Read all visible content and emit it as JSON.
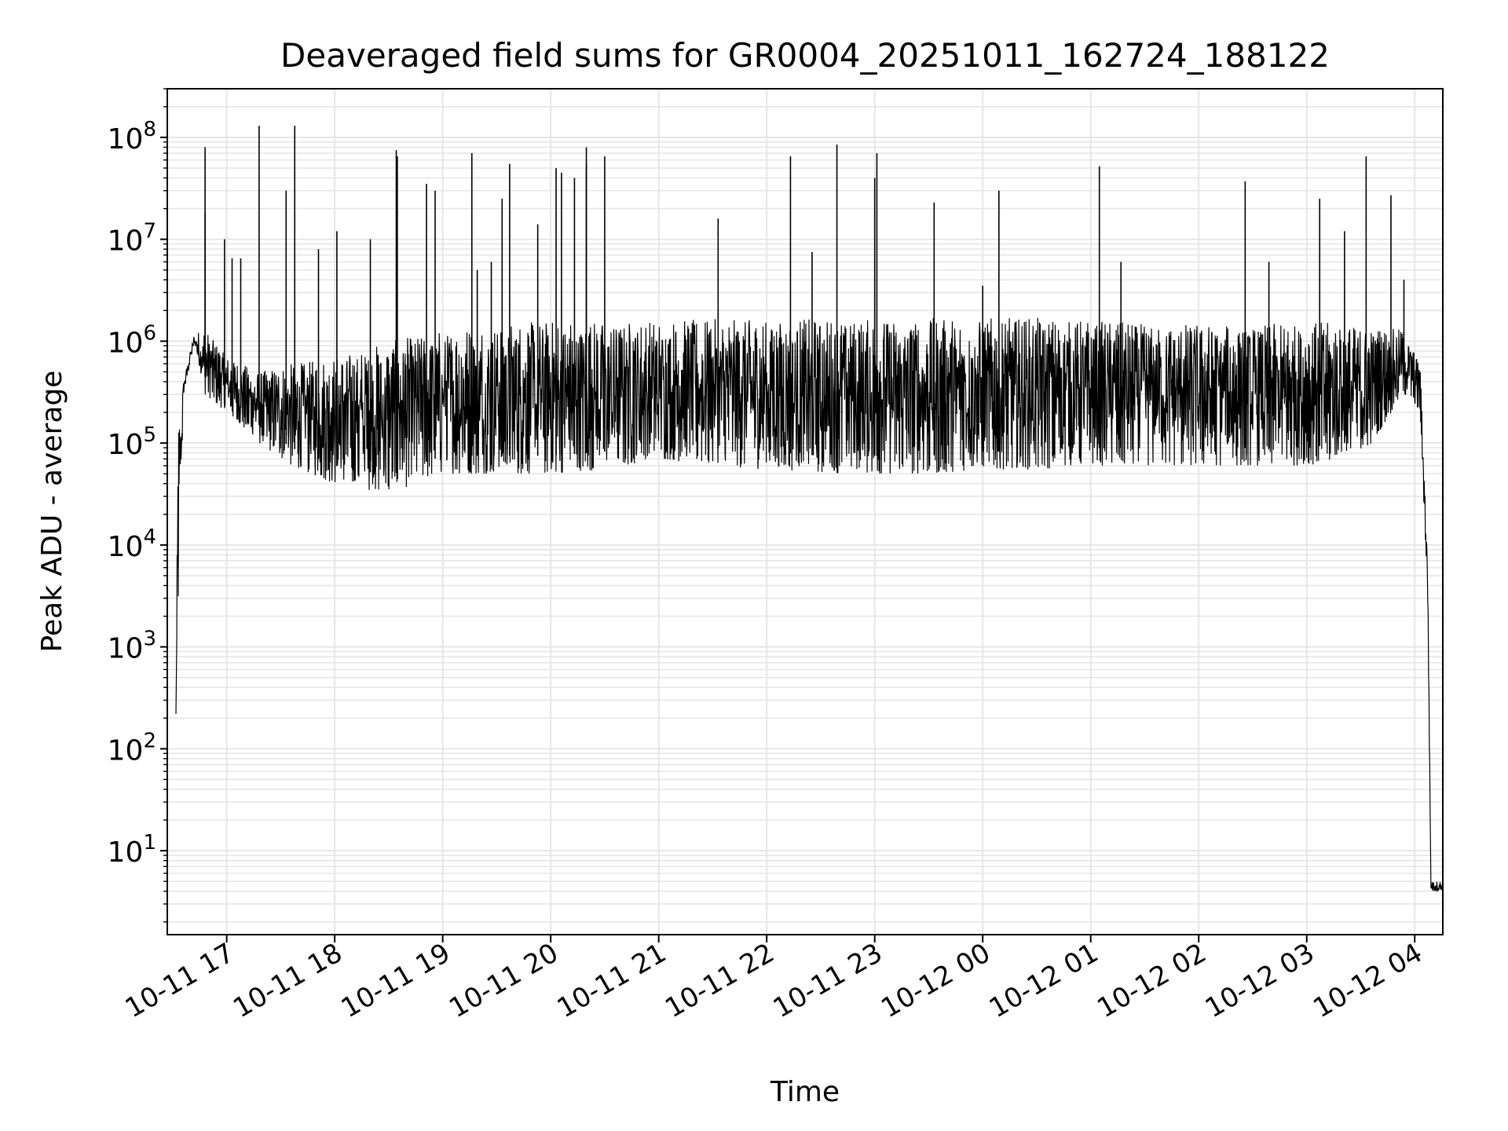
{
  "chart_data": {
    "type": "line",
    "title": "Deaveraged field sums for GR0004_20251011_162724_188122",
    "xlabel": "Time",
    "ylabel": "Peak ADU - average",
    "yscale": "log",
    "ylim": [
      1.5,
      300000000
    ],
    "xlim_hours": [
      16.45,
      28.26
    ],
    "x_tick_labels": [
      "10-11 17",
      "10-11 18",
      "10-11 19",
      "10-11 20",
      "10-11 21",
      "10-11 22",
      "10-11 23",
      "10-12 00",
      "10-12 01",
      "10-12 02",
      "10-12 03",
      "10-12 04"
    ],
    "x_tick_hours": [
      17,
      18,
      19,
      20,
      21,
      22,
      23,
      24,
      25,
      26,
      27,
      28
    ],
    "y_tick_exponents": [
      1,
      2,
      3,
      4,
      5,
      6,
      7,
      8
    ],
    "grid": true,
    "line_color": "#000000",
    "grid_color": "#e6e6e6",
    "series": [
      {
        "name": "Peak ADU - average",
        "envelope": [
          {
            "t": 16.53,
            "low": 220,
            "high": 220
          },
          {
            "t": 16.55,
            "low": 2000,
            "high": 150000
          },
          {
            "t": 16.6,
            "low": 300000,
            "high": 400000
          },
          {
            "t": 16.7,
            "low": 900000,
            "high": 1200000
          },
          {
            "t": 16.8,
            "low": 300000,
            "high": 1300000
          },
          {
            "t": 17.0,
            "low": 200000,
            "high": 700000
          },
          {
            "t": 17.3,
            "low": 100000,
            "high": 500000
          },
          {
            "t": 17.6,
            "low": 60000,
            "high": 600000
          },
          {
            "t": 18.0,
            "low": 40000,
            "high": 700000
          },
          {
            "t": 18.5,
            "low": 32000,
            "high": 1000000
          },
          {
            "t": 19.0,
            "low": 50000,
            "high": 1300000
          },
          {
            "t": 19.5,
            "low": 50000,
            "high": 1500000
          },
          {
            "t": 20.0,
            "low": 50000,
            "high": 1600000
          },
          {
            "t": 20.5,
            "low": 55000,
            "high": 1600000
          },
          {
            "t": 21.0,
            "low": 70000,
            "high": 1600000
          },
          {
            "t": 21.5,
            "low": 60000,
            "high": 1650000
          },
          {
            "t": 22.0,
            "low": 55000,
            "high": 1650000
          },
          {
            "t": 22.5,
            "low": 50000,
            "high": 1650000
          },
          {
            "t": 23.0,
            "low": 50000,
            "high": 1650000
          },
          {
            "t": 23.5,
            "low": 50000,
            "high": 1700000
          },
          {
            "t": 24.0,
            "low": 55000,
            "high": 1700000
          },
          {
            "t": 24.5,
            "low": 55000,
            "high": 1700000
          },
          {
            "t": 25.0,
            "low": 60000,
            "high": 1600000
          },
          {
            "t": 25.5,
            "low": 60000,
            "high": 1500000
          },
          {
            "t": 26.0,
            "low": 60000,
            "high": 1500000
          },
          {
            "t": 26.5,
            "low": 60000,
            "high": 1400000
          },
          {
            "t": 27.0,
            "low": 60000,
            "high": 1600000
          },
          {
            "t": 27.5,
            "low": 70000,
            "high": 1400000
          },
          {
            "t": 27.9,
            "low": 300000,
            "high": 1300000
          },
          {
            "t": 28.05,
            "low": 200000,
            "high": 600000
          },
          {
            "t": 28.12,
            "low": 3000,
            "high": 7000
          },
          {
            "t": 28.15,
            "low": 4,
            "high": 5
          },
          {
            "t": 28.26,
            "low": 4,
            "high": 5
          }
        ],
        "spikes": [
          {
            "t": 16.8,
            "v": 80000000
          },
          {
            "t": 16.8,
            "v": 18000000
          },
          {
            "t": 16.98,
            "v": 10000000
          },
          {
            "t": 17.05,
            "v": 6500000
          },
          {
            "t": 17.13,
            "v": 6500000
          },
          {
            "t": 17.3,
            "v": 130000000
          },
          {
            "t": 17.55,
            "v": 30000000
          },
          {
            "t": 17.63,
            "v": 130000000
          },
          {
            "t": 17.85,
            "v": 8000000
          },
          {
            "t": 18.02,
            "v": 12000000
          },
          {
            "t": 18.33,
            "v": 10000000
          },
          {
            "t": 18.57,
            "v": 75000000
          },
          {
            "t": 18.58,
            "v": 65000000
          },
          {
            "t": 18.85,
            "v": 35000000
          },
          {
            "t": 18.93,
            "v": 30000000
          },
          {
            "t": 19.27,
            "v": 70000000
          },
          {
            "t": 19.32,
            "v": 5000000
          },
          {
            "t": 19.45,
            "v": 6000000
          },
          {
            "t": 19.55,
            "v": 25000000
          },
          {
            "t": 19.62,
            "v": 55000000
          },
          {
            "t": 19.88,
            "v": 14000000
          },
          {
            "t": 20.05,
            "v": 50000000
          },
          {
            "t": 20.1,
            "v": 45000000
          },
          {
            "t": 20.22,
            "v": 40000000
          },
          {
            "t": 20.33,
            "v": 55000000
          },
          {
            "t": 20.33,
            "v": 80000000
          },
          {
            "t": 20.5,
            "v": 65000000
          },
          {
            "t": 21.55,
            "v": 16000000
          },
          {
            "t": 22.22,
            "v": 65000000
          },
          {
            "t": 22.42,
            "v": 7500000
          },
          {
            "t": 22.65,
            "v": 85000000
          },
          {
            "t": 23.0,
            "v": 40000000
          },
          {
            "t": 23.02,
            "v": 70000000
          },
          {
            "t": 23.55,
            "v": 23000000
          },
          {
            "t": 24.0,
            "v": 3500000
          },
          {
            "t": 24.15,
            "v": 30000000
          },
          {
            "t": 25.08,
            "v": 52000000
          },
          {
            "t": 25.28,
            "v": 6000000
          },
          {
            "t": 26.43,
            "v": 37000000
          },
          {
            "t": 26.65,
            "v": 6000000
          },
          {
            "t": 27.12,
            "v": 25000000
          },
          {
            "t": 27.35,
            "v": 12000000
          },
          {
            "t": 27.55,
            "v": 65000000
          },
          {
            "t": 27.78,
            "v": 27000000
          },
          {
            "t": 27.9,
            "v": 4000000
          }
        ]
      }
    ]
  }
}
